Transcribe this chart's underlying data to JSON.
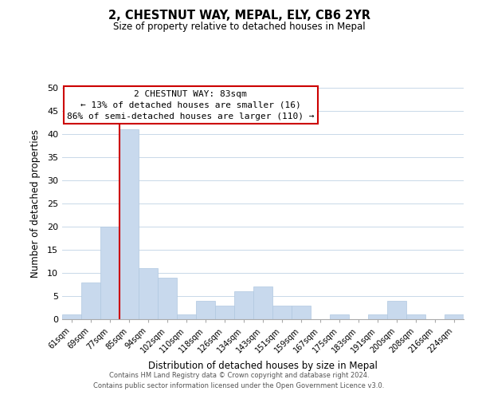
{
  "title": "2, CHESTNUT WAY, MEPAL, ELY, CB6 2YR",
  "subtitle": "Size of property relative to detached houses in Mepal",
  "xlabel": "Distribution of detached houses by size in Mepal",
  "ylabel": "Number of detached properties",
  "bar_labels": [
    "61sqm",
    "69sqm",
    "77sqm",
    "85sqm",
    "94sqm",
    "102sqm",
    "110sqm",
    "118sqm",
    "126sqm",
    "134sqm",
    "143sqm",
    "151sqm",
    "159sqm",
    "167sqm",
    "175sqm",
    "183sqm",
    "191sqm",
    "200sqm",
    "208sqm",
    "216sqm",
    "224sqm"
  ],
  "bar_values": [
    1,
    8,
    20,
    41,
    11,
    9,
    1,
    4,
    3,
    6,
    7,
    3,
    3,
    0,
    1,
    0,
    1,
    4,
    1,
    0,
    1
  ],
  "bar_color": "#c8d9ed",
  "bar_edge_color": "#b0c8e0",
  "ylim": [
    0,
    50
  ],
  "yticks": [
    0,
    5,
    10,
    15,
    20,
    25,
    30,
    35,
    40,
    45,
    50
  ],
  "red_line_x": 2.5,
  "annotation_title": "2 CHESTNUT WAY: 83sqm",
  "annotation_line1": "← 13% of detached houses are smaller (16)",
  "annotation_line2": "86% of semi-detached houses are larger (110) →",
  "annotation_box_color": "#ffffff",
  "annotation_box_edge": "#cc0000",
  "footer_line1": "Contains HM Land Registry data © Crown copyright and database right 2024.",
  "footer_line2": "Contains public sector information licensed under the Open Government Licence v3.0.",
  "bg_color": "#ffffff",
  "grid_color": "#c8d8e8"
}
